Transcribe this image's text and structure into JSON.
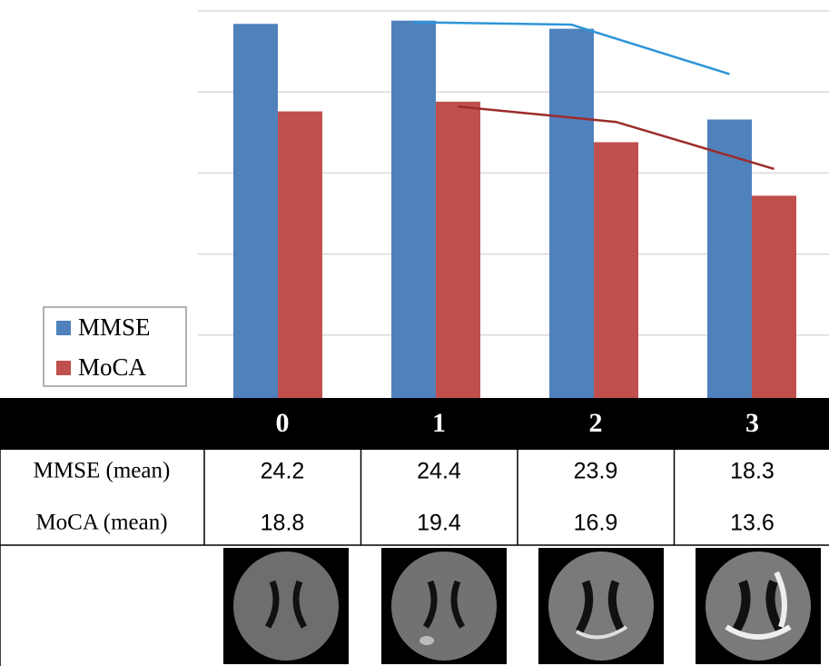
{
  "chart_data": {
    "type": "bar",
    "categories": [
      "0",
      "1",
      "2",
      "3"
    ],
    "series": [
      {
        "name": "MMSE",
        "color": "#4f81bd",
        "trend_color": "#2e95d8",
        "values": [
          24.2,
          24.4,
          23.9,
          18.3
        ]
      },
      {
        "name": "MoCA",
        "color": "#c0504d",
        "trend_color": "#9b2c2a",
        "values": [
          18.8,
          19.4,
          16.9,
          13.6
        ]
      }
    ],
    "trendline": {
      "type": "moving_average",
      "period": 2
    },
    "ylim": [
      0,
      25
    ],
    "yticks": [
      0,
      5,
      10,
      15,
      20,
      25
    ],
    "grid": true,
    "legend": "bottom-left",
    "table_row_labels": [
      "MMSE (mean)",
      "MoCA (mean)"
    ]
  }
}
